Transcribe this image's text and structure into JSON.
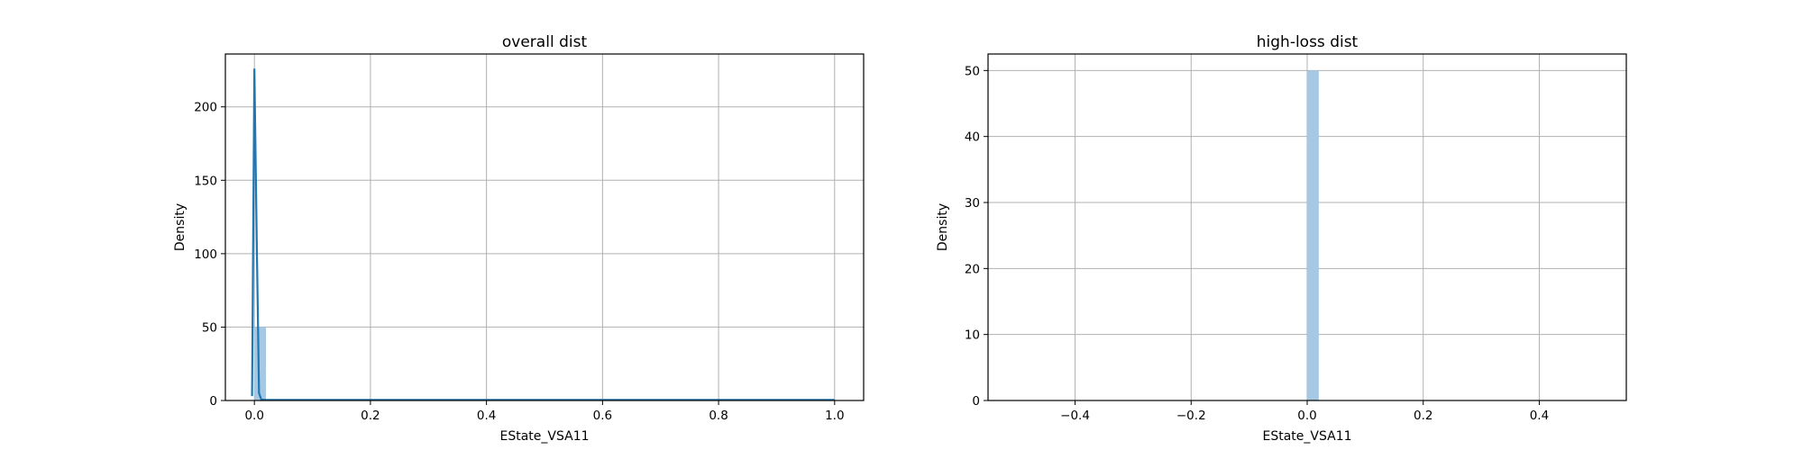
{
  "chart_data": [
    {
      "type": "histogram",
      "title": "overall dist",
      "xlabel": "EState_VSA11",
      "ylabel": "Density",
      "xlim": [
        -0.05,
        1.05
      ],
      "ylim": [
        0,
        236
      ],
      "xticks": [
        0.0,
        0.2,
        0.4,
        0.6,
        0.8,
        1.0
      ],
      "xtick_labels": [
        "0.0",
        "0.2",
        "0.4",
        "0.6",
        "0.8",
        "1.0"
      ],
      "yticks": [
        0,
        50,
        100,
        150,
        200
      ],
      "ytick_labels": [
        "0",
        "50",
        "100",
        "150",
        "200"
      ],
      "grid": true,
      "bars": [
        {
          "x0": 0.0,
          "x1": 0.02,
          "height": 50
        },
        {
          "x0": 0.02,
          "x1": 1.0,
          "height": 0.3
        }
      ],
      "bar_color": "#a6c8e3",
      "kde": {
        "color": "#1f77b4",
        "x": [
          -0.004,
          0.0,
          0.004,
          0.008,
          0.012,
          0.02,
          1.0
        ],
        "y": [
          3,
          226,
          110,
          5,
          0.6,
          0.4,
          0.4
        ]
      }
    },
    {
      "type": "histogram",
      "title": "high-loss dist",
      "xlabel": "EState_VSA11",
      "ylabel": "Density",
      "xlim": [
        -0.55,
        0.55
      ],
      "ylim": [
        0,
        52.5
      ],
      "xticks": [
        -0.4,
        -0.2,
        0.0,
        0.2,
        0.4
      ],
      "xtick_labels": [
        "−0.4",
        "−0.2",
        "0.0",
        "0.2",
        "0.4"
      ],
      "yticks": [
        0,
        10,
        20,
        30,
        40,
        50
      ],
      "ytick_labels": [
        "0",
        "10",
        "20",
        "30",
        "40",
        "50"
      ],
      "grid": true,
      "bars": [
        {
          "x0": 0.0,
          "x1": 0.02,
          "height": 50
        }
      ],
      "bar_color": "#a6c8e3"
    }
  ]
}
